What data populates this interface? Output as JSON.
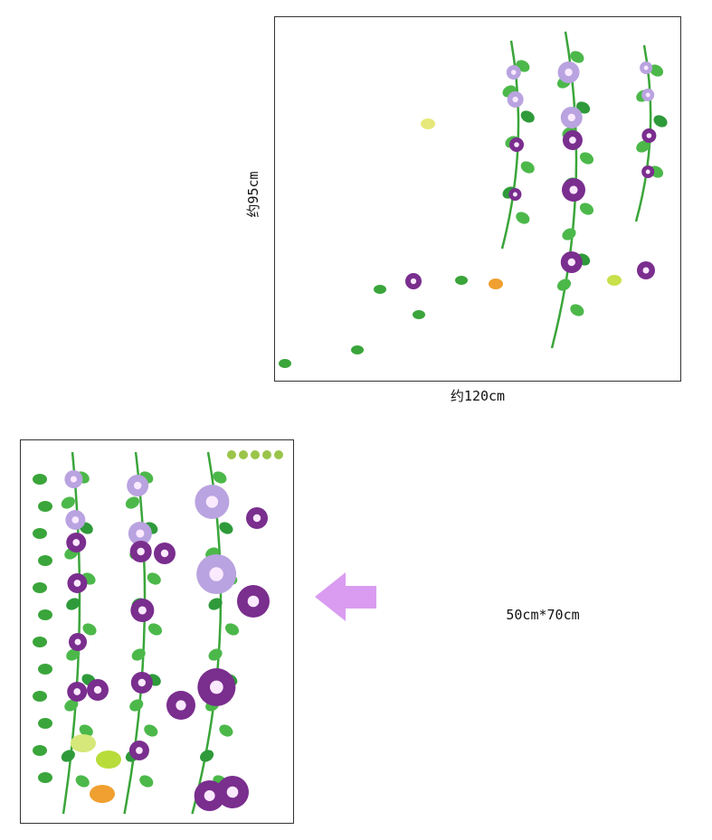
{
  "dimensions": {
    "height_label": "约95cm",
    "width_label": "约120cm",
    "size_label": "50cm*70cm"
  }
}
